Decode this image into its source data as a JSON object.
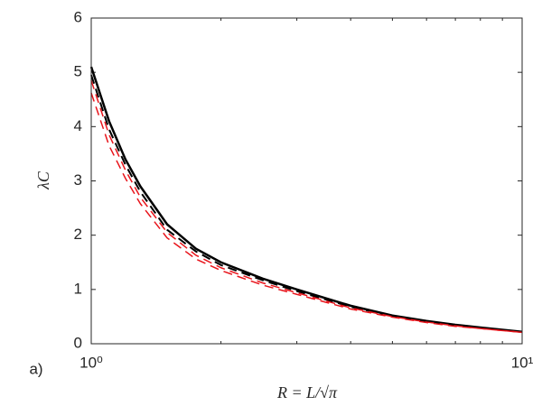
{
  "chart_data": {
    "type": "line",
    "panel_label": "a)",
    "xlabel": "R = L/√π",
    "ylabel": "λC",
    "xscale": "log",
    "xlim": [
      1,
      10
    ],
    "ylim": [
      0,
      6
    ],
    "xticks": [
      {
        "value": 1,
        "label": "10⁰"
      },
      {
        "value": 10,
        "label": "10¹"
      }
    ],
    "xminorticks": [
      2,
      3,
      4,
      5,
      6,
      7,
      8,
      9
    ],
    "yticks": [
      0,
      1,
      2,
      3,
      4,
      5,
      6
    ],
    "x": [
      1,
      1.1,
      1.2,
      1.3,
      1.5,
      1.75,
      2,
      2.5,
      3,
      4,
      5,
      6,
      7,
      8,
      10
    ],
    "series": [
      {
        "color": "#000000",
        "style": "solid",
        "width": 2.5,
        "values": [
          5.1,
          4.1,
          3.4,
          2.9,
          2.2,
          1.75,
          1.5,
          1.2,
          1.0,
          0.7,
          0.52,
          0.42,
          0.35,
          0.3,
          0.22
        ]
      },
      {
        "color": "#000000",
        "style": "dashed",
        "width": 2,
        "values": [
          4.95,
          3.95,
          3.3,
          2.8,
          2.1,
          1.7,
          1.45,
          1.17,
          0.97,
          0.68,
          0.51,
          0.41,
          0.34,
          0.29,
          0.22
        ]
      },
      {
        "color": "#e8141b",
        "style": "dashed",
        "width": 1.5,
        "values": [
          4.85,
          3.85,
          3.2,
          2.7,
          2.05,
          1.63,
          1.4,
          1.12,
          0.94,
          0.66,
          0.5,
          0.4,
          0.33,
          0.28,
          0.21
        ]
      },
      {
        "color": "#e8141b",
        "style": "dashed",
        "width": 1.5,
        "values": [
          4.62,
          3.65,
          3.05,
          2.58,
          1.95,
          1.56,
          1.35,
          1.08,
          0.91,
          0.64,
          0.49,
          0.39,
          0.32,
          0.28,
          0.21
        ]
      }
    ]
  }
}
